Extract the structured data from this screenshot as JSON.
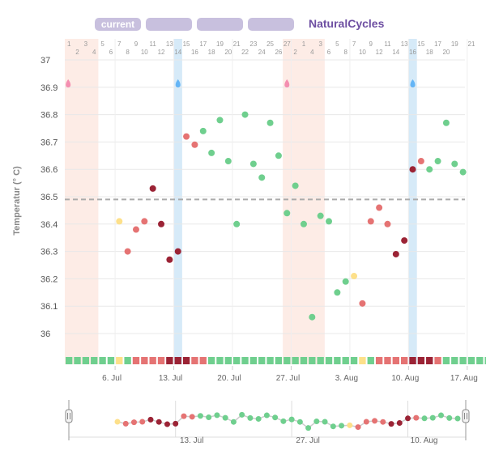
{
  "tabs": [
    {
      "label": "current"
    },
    {
      "label": ""
    },
    {
      "label": ""
    },
    {
      "label": ""
    }
  ],
  "brand": "NaturalCycles",
  "colors": {
    "green": "#6fcf8e",
    "red": "#e57373",
    "darkred": "#9b2335",
    "yellow": "#fde08a",
    "period_band": "#fdece6",
    "ovulation_band": "#d6eaf8",
    "accent": "#6e4fa2"
  },
  "chart_data": {
    "type": "scatter",
    "title": "",
    "xlabel": "",
    "ylabel": "Temperatur (° C)",
    "ylim": [
      35.9,
      37.0
    ],
    "yticks": [
      36,
      36.1,
      36.2,
      36.3,
      36.4,
      36.5,
      36.6,
      36.7,
      36.8,
      36.9,
      37
    ],
    "cover_line": 36.49,
    "x_tick_labels": [
      "6. Jul",
      "13. Jul",
      "20. Jul",
      "27. Jul",
      "3. Aug",
      "10. Aug",
      "17. Aug"
    ],
    "x_tick_days": [
      7,
      14,
      21,
      28,
      35,
      42,
      49
    ],
    "cycle_day_row1": [
      1,
      3,
      5,
      7,
      9,
      11,
      13,
      15,
      17,
      19,
      21,
      23,
      25,
      27,
      1,
      3,
      5,
      7,
      9,
      11,
      13,
      15,
      17,
      19,
      21
    ],
    "cycle_day_row2": [
      2,
      4,
      6,
      8,
      10,
      12,
      14,
      16,
      18,
      20,
      22,
      24,
      26,
      2,
      4,
      6,
      8,
      10,
      12,
      14,
      16,
      18,
      20
    ],
    "period_bands": [
      [
        1,
        4
      ],
      [
        27,
        31
      ]
    ],
    "ovulation_days": [
      14,
      42
    ],
    "fertility_markers": [
      {
        "day": 1,
        "type": "period-drop"
      },
      {
        "day": 14,
        "type": "ovulation-drop"
      },
      {
        "day": 27,
        "type": "period-drop"
      },
      {
        "day": 42,
        "type": "ovulation-drop"
      }
    ],
    "points": [
      {
        "day": 7,
        "temp": 36.41,
        "status": "yellow"
      },
      {
        "day": 8,
        "temp": 36.3,
        "status": "red"
      },
      {
        "day": 9,
        "temp": 36.38,
        "status": "red"
      },
      {
        "day": 10,
        "temp": 36.41,
        "status": "red"
      },
      {
        "day": 11,
        "temp": 36.53,
        "status": "darkred"
      },
      {
        "day": 12,
        "temp": 36.4,
        "status": "darkred"
      },
      {
        "day": 13,
        "temp": 36.27,
        "status": "darkred"
      },
      {
        "day": 14,
        "temp": 36.3,
        "status": "darkred"
      },
      {
        "day": 15,
        "temp": 36.72,
        "status": "red"
      },
      {
        "day": 16,
        "temp": 36.69,
        "status": "red"
      },
      {
        "day": 17,
        "temp": 36.74,
        "status": "green"
      },
      {
        "day": 18,
        "temp": 36.66,
        "status": "green"
      },
      {
        "day": 19,
        "temp": 36.78,
        "status": "green"
      },
      {
        "day": 20,
        "temp": 36.63,
        "status": "green"
      },
      {
        "day": 21,
        "temp": 36.4,
        "status": "green"
      },
      {
        "day": 22,
        "temp": 36.8,
        "status": "green"
      },
      {
        "day": 23,
        "temp": 36.62,
        "status": "green"
      },
      {
        "day": 24,
        "temp": 36.57,
        "status": "green"
      },
      {
        "day": 25,
        "temp": 36.77,
        "status": "green"
      },
      {
        "day": 26,
        "temp": 36.65,
        "status": "green"
      },
      {
        "day": 27,
        "temp": 36.44,
        "status": "green"
      },
      {
        "day": 28,
        "temp": 36.54,
        "status": "green"
      },
      {
        "day": 29,
        "temp": 36.4,
        "status": "green"
      },
      {
        "day": 30,
        "temp": 36.06,
        "status": "green"
      },
      {
        "day": 31,
        "temp": 36.43,
        "status": "green"
      },
      {
        "day": 32,
        "temp": 36.41,
        "status": "green"
      },
      {
        "day": 33,
        "temp": 36.15,
        "status": "green"
      },
      {
        "day": 34,
        "temp": 36.19,
        "status": "green"
      },
      {
        "day": 35,
        "temp": 36.21,
        "status": "yellow"
      },
      {
        "day": 36,
        "temp": 36.11,
        "status": "red"
      },
      {
        "day": 37,
        "temp": 36.41,
        "status": "red"
      },
      {
        "day": 38,
        "temp": 36.46,
        "status": "red"
      },
      {
        "day": 39,
        "temp": 36.4,
        "status": "red"
      },
      {
        "day": 40,
        "temp": 36.29,
        "status": "darkred"
      },
      {
        "day": 41,
        "temp": 36.34,
        "status": "darkred"
      },
      {
        "day": 42,
        "temp": 36.6,
        "status": "darkred"
      },
      {
        "day": 43,
        "temp": 36.63,
        "status": "red"
      },
      {
        "day": 44,
        "temp": 36.6,
        "status": "green"
      },
      {
        "day": 45,
        "temp": 36.63,
        "status": "green"
      },
      {
        "day": 46,
        "temp": 36.77,
        "status": "green"
      },
      {
        "day": 47,
        "temp": 36.62,
        "status": "green"
      },
      {
        "day": 48,
        "temp": 36.59,
        "status": "green"
      }
    ],
    "status_bar": [
      "green",
      "green",
      "green",
      "green",
      "green",
      "green",
      "yellow",
      "green",
      "red",
      "red",
      "red",
      "red",
      "darkred",
      "darkred",
      "darkred",
      "red",
      "red",
      "green",
      "green",
      "green",
      "green",
      "green",
      "green",
      "green",
      "green",
      "green",
      "green",
      "green",
      "green",
      "green",
      "green",
      "green",
      "green",
      "green",
      "green",
      "yellow",
      "green",
      "red",
      "red",
      "red",
      "red",
      "darkred",
      "darkred",
      "darkred",
      "red",
      "green",
      "green",
      "green",
      "green",
      "green",
      "green",
      "green",
      "green"
    ],
    "navigator": {
      "x_tick_labels": [
        "13. Jul",
        "27. Jul",
        "10. Aug"
      ],
      "x_tick_days": [
        14,
        28,
        42
      ]
    }
  }
}
